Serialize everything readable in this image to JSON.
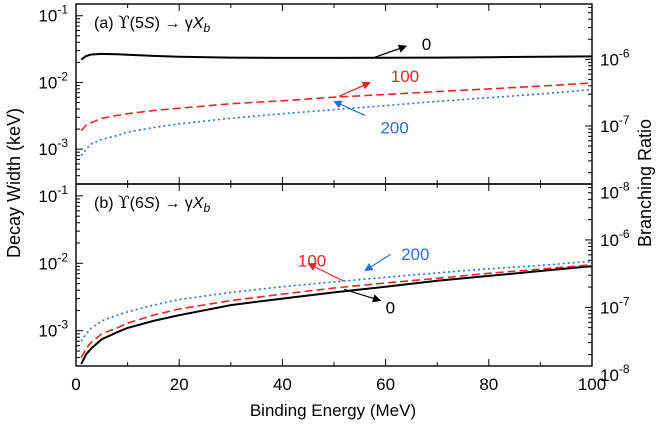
{
  "chart_data": {
    "type": "line",
    "xlabel": "Binding Energy (MeV)",
    "ylabel_left": "Decay Width (keV)",
    "ylabel_right": "Branching Ratio",
    "xlim": [
      0,
      100
    ],
    "x_ticks": [
      0,
      20,
      40,
      60,
      80,
      100
    ],
    "x_tick_labels": [
      "0",
      "20",
      "40",
      "60",
      "80",
      "100"
    ],
    "log_y": true,
    "grid": false,
    "panels": [
      {
        "label_prefix": "(a)",
        "label_state": "5S",
        "label_process": "→ γX",
        "label_sub": "b",
        "ylim": [
          0.0003,
          0.15
        ],
        "left_ticks": [
          0.001,
          0.01,
          0.1
        ],
        "left_tick_labels": [
          {
            "base": "10",
            "exp": "-3"
          },
          {
            "base": "10",
            "exp": "-2"
          },
          {
            "base": "10",
            "exp": "-1"
          }
        ],
        "right_ticks": [
          {
            "value": 1e-08,
            "base": "10",
            "exp": "-8"
          },
          {
            "value": 1e-07,
            "base": "10",
            "exp": "-7"
          },
          {
            "value": 1e-06,
            "base": "10",
            "exp": "-6"
          }
        ],
        "right_scale": 4.5e-05,
        "series": [
          {
            "label": "0",
            "color": "#000000",
            "dash": "",
            "x": [
              1,
              2,
              3,
              5,
              8,
              10,
              15,
              20,
              30,
              40,
              50,
              60,
              70,
              80,
              90,
              100
            ],
            "y": [
              0.022,
              0.025,
              0.0262,
              0.0268,
              0.0265,
              0.026,
              0.025,
              0.0242,
              0.0236,
              0.0233,
              0.0233,
              0.0234,
              0.0236,
              0.0239,
              0.0242,
              0.0246
            ]
          },
          {
            "label": "100",
            "color": "#e0292a",
            "dash": "8,4",
            "x": [
              1,
              2,
              3,
              5,
              8,
              10,
              15,
              20,
              30,
              40,
              50,
              60,
              70,
              80,
              90,
              100
            ],
            "y": [
              0.0019,
              0.0023,
              0.0025,
              0.0029,
              0.0032,
              0.0034,
              0.0038,
              0.0041,
              0.0048,
              0.0053,
              0.006,
              0.0066,
              0.0073,
              0.008,
              0.0088,
              0.0098
            ]
          },
          {
            "label": "200",
            "color": "#2a6fd6",
            "dash": "2,3",
            "x": [
              1,
              2,
              3,
              5,
              8,
              10,
              15,
              20,
              30,
              40,
              50,
              60,
              70,
              80,
              90,
              100
            ],
            "y": [
              0.0008,
              0.001,
              0.0012,
              0.0014,
              0.0016,
              0.0018,
              0.0021,
              0.0024,
              0.0029,
              0.0034,
              0.0039,
              0.0045,
              0.0052,
              0.0059,
              0.0067,
              0.0078
            ]
          }
        ],
        "annotations": [
          {
            "text": "0",
            "color": "#000000",
            "arrow_from": [
              64,
              0.035
            ],
            "arrow_to": [
              58,
              0.024
            ],
            "label_at": [
              67,
              0.038
            ]
          },
          {
            "text": "100",
            "color": "#e0292a",
            "arrow_from": [
              57,
              0.01
            ],
            "arrow_to": [
              51,
              0.0062
            ],
            "label_at": [
              61,
              0.0125
            ]
          },
          {
            "text": "200",
            "color": "#2a6fd6",
            "arrow_from": [
              50,
              0.0052
            ],
            "arrow_to": [
              56,
              0.0032
            ],
            "label_at": [
              59,
              0.0021
            ]
          }
        ]
      },
      {
        "label_prefix": "(b)",
        "label_state": "6S",
        "label_process": "→ γX",
        "label_sub": "b",
        "ylim": [
          0.0003,
          0.15
        ],
        "left_ticks": [
          0.001,
          0.01,
          0.1
        ],
        "left_tick_labels": [
          {
            "base": "10",
            "exp": "-3"
          },
          {
            "base": "10",
            "exp": "-2"
          },
          {
            "base": "10",
            "exp": "-1"
          }
        ],
        "right_ticks": [
          {
            "value": 1e-08,
            "base": "10",
            "exp": "-8"
          },
          {
            "value": 1e-07,
            "base": "10",
            "exp": "-7"
          },
          {
            "value": 1e-06,
            "base": "10",
            "exp": "-6"
          }
        ],
        "right_scale": 4.5e-05,
        "series": [
          {
            "label": "0",
            "color": "#000000",
            "dash": "",
            "x": [
              1,
              2,
              3,
              5,
              8,
              10,
              15,
              20,
              30,
              40,
              50,
              60,
              70,
              80,
              90,
              100
            ],
            "y": [
              0.00032,
              0.00045,
              0.00055,
              0.00075,
              0.00095,
              0.0011,
              0.0014,
              0.0017,
              0.0024,
              0.003,
              0.0037,
              0.0045,
              0.0055,
              0.0065,
              0.0077,
              0.0091
            ]
          },
          {
            "label": "100",
            "color": "#e0292a",
            "dash": "8,4",
            "x": [
              1,
              2,
              3,
              5,
              8,
              10,
              15,
              20,
              30,
              40,
              50,
              60,
              70,
              80,
              90,
              100
            ],
            "y": [
              0.0004,
              0.00055,
              0.00068,
              0.0009,
              0.0011,
              0.0013,
              0.0017,
              0.0021,
              0.0028,
              0.0035,
              0.0043,
              0.0051,
              0.006,
              0.0071,
              0.0082,
              0.0095
            ]
          },
          {
            "label": "200",
            "color": "#2a6fd6",
            "dash": "2,3",
            "x": [
              1,
              2,
              3,
              5,
              8,
              10,
              15,
              20,
              30,
              40,
              50,
              60,
              70,
              80,
              90,
              100
            ],
            "y": [
              0.0007,
              0.0009,
              0.0011,
              0.0014,
              0.0017,
              0.0019,
              0.0024,
              0.0029,
              0.0037,
              0.0045,
              0.0053,
              0.0062,
              0.0072,
              0.0083,
              0.0093,
              0.0107
            ]
          }
        ],
        "annotations": [
          {
            "text": "0",
            "color": "#000000",
            "arrow_from": [
              59,
              0.0028
            ],
            "arrow_to": [
              52,
              0.0041
            ],
            "label_at": [
              60,
              0.0022
            ]
          },
          {
            "text": "100",
            "color": "#e0292a",
            "arrow_from": [
              45,
              0.0099
            ],
            "arrow_to": [
              52,
              0.0054
            ],
            "label_at": [
              43,
              0.011
            ]
          },
          {
            "text": "200",
            "color": "#2a6fd6",
            "arrow_from": [
              56,
              0.0078
            ],
            "arrow_to": [
              61,
              0.0136
            ],
            "label_at": [
              63,
              0.0138
            ]
          }
        ]
      }
    ]
  }
}
